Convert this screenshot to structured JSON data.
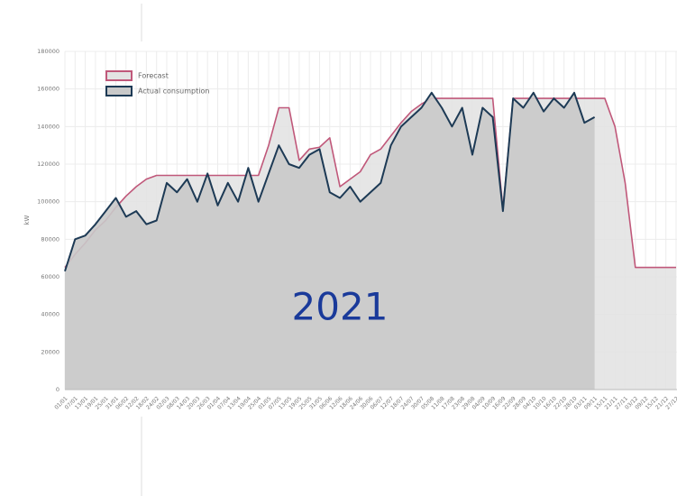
{
  "chart_data": {
    "type": "area",
    "annotation": "2021",
    "y_label": "kW",
    "categories": [
      "01/01",
      "07/01",
      "13/01",
      "19/01",
      "25/01",
      "31/01",
      "06/02",
      "12/02",
      "18/02",
      "24/02",
      "02/03",
      "08/03",
      "14/03",
      "20/03",
      "26/03",
      "01/04",
      "07/04",
      "13/04",
      "19/04",
      "25/04",
      "01/05",
      "07/05",
      "13/05",
      "19/05",
      "25/05",
      "31/05",
      "06/06",
      "12/06",
      "18/06",
      "24/06",
      "30/06",
      "06/07",
      "12/07",
      "18/07",
      "24/07",
      "30/07",
      "05/08",
      "11/08",
      "17/08",
      "23/08",
      "29/08",
      "04/09",
      "10/09",
      "16/09",
      "22/09",
      "28/09",
      "04/10",
      "10/10",
      "16/10",
      "22/10",
      "28/10",
      "03/11",
      "09/11",
      "15/11",
      "21/11",
      "27/11",
      "03/12",
      "09/12",
      "15/12",
      "21/12",
      "27/12"
    ],
    "series": [
      {
        "name": "Forecast",
        "color": "#c0587a",
        "fill": "#e3e3e3",
        "values": [
          65000,
          72000,
          78000,
          85000,
          90000,
          97000,
          103000,
          108000,
          112000,
          114000,
          114000,
          114000,
          114000,
          114000,
          114000,
          114000,
          114000,
          114000,
          114000,
          114000,
          130000,
          150000,
          150000,
          122000,
          128000,
          129000,
          134000,
          108000,
          112000,
          116000,
          125000,
          128000,
          135000,
          142000,
          148000,
          152000,
          155000,
          155000,
          155000,
          155000,
          155000,
          155000,
          155000,
          96000,
          155000,
          155000,
          155000,
          155000,
          155000,
          155000,
          155000,
          155000,
          155000,
          155000,
          140000,
          110000,
          65000,
          65000,
          65000,
          65000,
          65000
        ]
      },
      {
        "name": "Actual consumption",
        "color": "#1d3a55",
        "fill": "#c9c9c9",
        "values": [
          63000,
          80000,
          82000,
          88000,
          95000,
          102000,
          92000,
          95000,
          88000,
          90000,
          110000,
          105000,
          112000,
          100000,
          115000,
          98000,
          110000,
          100000,
          118000,
          100000,
          115000,
          130000,
          120000,
          118000,
          125000,
          128000,
          105000,
          102000,
          108000,
          100000,
          105000,
          110000,
          130000,
          140000,
          145000,
          150000,
          158000,
          150000,
          140000,
          150000,
          125000,
          150000,
          145000,
          95000,
          155000,
          150000,
          158000,
          148000,
          155000,
          150000,
          158000,
          142000,
          145000,
          null,
          null,
          null,
          null,
          null,
          null,
          null,
          null
        ]
      }
    ],
    "ylim": [
      0,
      180000
    ],
    "yticks": [
      0,
      20000,
      40000,
      60000,
      80000,
      100000,
      120000,
      140000,
      160000,
      180000
    ],
    "grid": true,
    "legend": "upper left"
  }
}
